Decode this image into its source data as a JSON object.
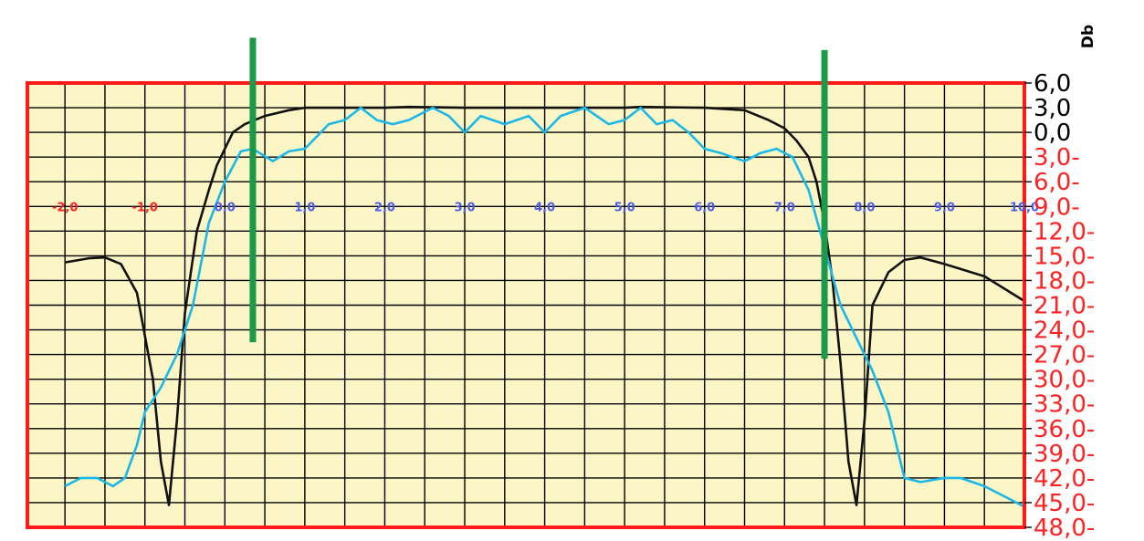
{
  "chart_data": {
    "type": "line",
    "ylabel": "Db",
    "xlim": [
      -2.0,
      10.0
    ],
    "ylim": [
      -48.0,
      6.0
    ],
    "grid": true,
    "colors": {
      "plot_background": "#fcf5c6",
      "plot_border": "#ff1a1a",
      "grid": "#000000",
      "negative_x_tick": "#ff2222",
      "positive_x_tick": "#4a5cf0",
      "positive_y_tick": "#000000",
      "negative_y_tick": "#ff2222"
    },
    "x_ticks": [
      {
        "value": -2,
        "label": "-2,0"
      },
      {
        "value": -1,
        "label": "-1,0"
      },
      {
        "value": 0,
        "label": "0,0"
      },
      {
        "value": 1,
        "label": "1,0"
      },
      {
        "value": 2,
        "label": "2,0"
      },
      {
        "value": 3,
        "label": "3,0"
      },
      {
        "value": 4,
        "label": "4,0"
      },
      {
        "value": 5,
        "label": "5,0"
      },
      {
        "value": 6,
        "label": "6,0"
      },
      {
        "value": 7,
        "label": "7,0"
      },
      {
        "value": 8,
        "label": "8,0"
      },
      {
        "value": 9,
        "label": "9,0"
      },
      {
        "value": 10,
        "label": "10,0"
      }
    ],
    "y_ticks": [
      {
        "value": 6,
        "label": "6,0"
      },
      {
        "value": 3,
        "label": "3,0"
      },
      {
        "value": 0,
        "label": "0,0"
      },
      {
        "value": -3,
        "label": "3,0-"
      },
      {
        "value": -6,
        "label": "6,0-"
      },
      {
        "value": -9,
        "label": "9,0-"
      },
      {
        "value": -12,
        "label": "12,0-"
      },
      {
        "value": -15,
        "label": "15,0-"
      },
      {
        "value": -18,
        "label": "18,0-"
      },
      {
        "value": -21,
        "label": "21,0-"
      },
      {
        "value": -24,
        "label": "24,0-"
      },
      {
        "value": -27,
        "label": "27,0-"
      },
      {
        "value": -30,
        "label": "30,0-"
      },
      {
        "value": -33,
        "label": "33,0-"
      },
      {
        "value": -36,
        "label": "36,0-"
      },
      {
        "value": -39,
        "label": "39,0-"
      },
      {
        "value": -42,
        "label": "42,0-"
      },
      {
        "value": -45,
        "label": "45,0-"
      },
      {
        "value": -48,
        "label": "48,0-"
      }
    ],
    "series": [
      {
        "color": "#111111",
        "points": [
          [
            -2.0,
            -15.8
          ],
          [
            -1.7,
            -15.3
          ],
          [
            -1.5,
            -15.2
          ],
          [
            -1.3,
            -16.0
          ],
          [
            -1.1,
            -19.5
          ],
          [
            -0.9,
            -30.0
          ],
          [
            -0.8,
            -40.0
          ],
          [
            -0.7,
            -45.3
          ],
          [
            -0.6,
            -35.0
          ],
          [
            -0.5,
            -22.0
          ],
          [
            -0.35,
            -12.0
          ],
          [
            -0.2,
            -7.0
          ],
          [
            -0.1,
            -4.0
          ],
          [
            0.0,
            -2.0
          ],
          [
            0.1,
            0.0
          ],
          [
            0.25,
            1.0
          ],
          [
            0.5,
            2.0
          ],
          [
            0.8,
            2.7
          ],
          [
            1.0,
            3.0
          ],
          [
            2.0,
            3.0
          ],
          [
            2.3,
            3.1
          ],
          [
            3.0,
            3.0
          ],
          [
            4.0,
            3.0
          ],
          [
            5.0,
            3.0
          ],
          [
            5.2,
            3.1
          ],
          [
            6.0,
            3.0
          ],
          [
            6.5,
            2.7
          ],
          [
            6.8,
            1.5
          ],
          [
            7.0,
            0.5
          ],
          [
            7.15,
            -1.0
          ],
          [
            7.3,
            -3.0
          ],
          [
            7.4,
            -6.0
          ],
          [
            7.5,
            -11.0
          ],
          [
            7.6,
            -18.0
          ],
          [
            7.7,
            -28.0
          ],
          [
            7.8,
            -40.0
          ],
          [
            7.9,
            -45.3
          ],
          [
            8.0,
            -35.0
          ],
          [
            8.1,
            -21.0
          ],
          [
            8.3,
            -17.0
          ],
          [
            8.5,
            -15.5
          ],
          [
            8.7,
            -15.2
          ],
          [
            9.0,
            -16.0
          ],
          [
            9.5,
            -17.5
          ],
          [
            10.0,
            -20.5
          ]
        ]
      },
      {
        "color": "#1ab8e8",
        "points": [
          [
            -2.0,
            -43.0
          ],
          [
            -1.8,
            -42.0
          ],
          [
            -1.6,
            -42.0
          ],
          [
            -1.4,
            -43.0
          ],
          [
            -1.25,
            -42.0
          ],
          [
            -1.1,
            -38.0
          ],
          [
            -1.0,
            -34.0
          ],
          [
            -0.8,
            -31.0
          ],
          [
            -0.6,
            -27.0
          ],
          [
            -0.4,
            -21.0
          ],
          [
            -0.2,
            -11.0
          ],
          [
            0.0,
            -6.0
          ],
          [
            0.2,
            -2.3
          ],
          [
            0.35,
            -2.0
          ],
          [
            0.6,
            -3.5
          ],
          [
            0.8,
            -2.3
          ],
          [
            1.0,
            -2.0
          ],
          [
            1.3,
            1.0
          ],
          [
            1.5,
            1.5
          ],
          [
            1.7,
            3.0
          ],
          [
            1.9,
            1.5
          ],
          [
            2.1,
            1.0
          ],
          [
            2.3,
            1.5
          ],
          [
            2.6,
            3.0
          ],
          [
            2.8,
            2.0
          ],
          [
            3.0,
            0.0
          ],
          [
            3.2,
            2.0
          ],
          [
            3.5,
            1.0
          ],
          [
            3.8,
            2.0
          ],
          [
            4.0,
            0.0
          ],
          [
            4.2,
            2.0
          ],
          [
            4.5,
            3.0
          ],
          [
            4.8,
            1.0
          ],
          [
            5.0,
            1.5
          ],
          [
            5.2,
            3.0
          ],
          [
            5.4,
            1.0
          ],
          [
            5.6,
            1.5
          ],
          [
            5.8,
            0.0
          ],
          [
            6.0,
            -2.0
          ],
          [
            6.2,
            -2.5
          ],
          [
            6.5,
            -3.5
          ],
          [
            6.7,
            -2.5
          ],
          [
            6.9,
            -2.0
          ],
          [
            7.1,
            -3.0
          ],
          [
            7.3,
            -7.0
          ],
          [
            7.5,
            -14.0
          ],
          [
            7.7,
            -21.0
          ],
          [
            7.9,
            -25.0
          ],
          [
            8.1,
            -29.0
          ],
          [
            8.3,
            -34.0
          ],
          [
            8.5,
            -42.0
          ],
          [
            8.7,
            -42.5
          ],
          [
            9.0,
            -42.0
          ],
          [
            9.2,
            -42.0
          ],
          [
            9.5,
            -43.0
          ],
          [
            9.8,
            -44.5
          ],
          [
            10.0,
            -45.5
          ]
        ]
      }
    ],
    "markers": [
      {
        "x": 0.35,
        "y_top": 11.5,
        "y_bottom": -25.5,
        "color": "#1a9a4a"
      },
      {
        "x": 7.5,
        "y_top": 10.0,
        "y_bottom": -27.5,
        "color": "#1a9a4a"
      }
    ]
  }
}
